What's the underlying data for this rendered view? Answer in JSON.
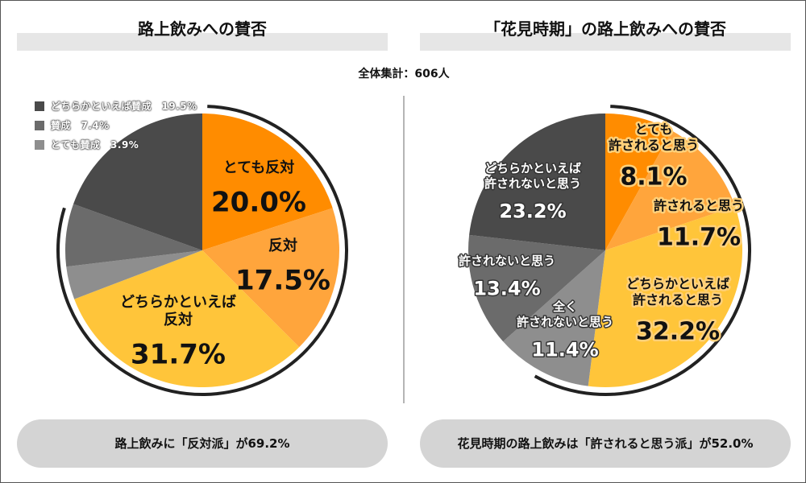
{
  "header": {
    "left_title": "路上飲みへの賛否",
    "right_title": "「花見時期」の路上飲みへの賛否",
    "total": "全体集計：606人"
  },
  "legend": [
    {
      "label": "どちらかといえば賛成　19.5%",
      "color": "#4a4a4a"
    },
    {
      "label": "賛成　7.4%",
      "color": "#6b6b6b"
    },
    {
      "label": "とても賛成　3.9%",
      "color": "#8e8e8e"
    }
  ],
  "summary": {
    "left": "路上飲みに「反対派」が69.2%",
    "right": "花見時期の路上飲みは「許されると思う派」が52.0%"
  },
  "colors": {
    "orange_dark": "#ff8c00",
    "orange": "#ffa53c",
    "yellow": "#ffc53a",
    "gray_dark": "#4a4a4a",
    "gray_mid": "#6b6b6b",
    "gray_light": "#8e8e8e",
    "label_outline": "#e07a00"
  },
  "chart_data": [
    {
      "type": "pie",
      "title": "路上飲みへの賛否",
      "start": "12 o'clock, clockwise",
      "slices": [
        {
          "name": "とても反対",
          "value": 20.0,
          "label": "20.0%",
          "color": "#ff8c00"
        },
        {
          "name": "反対",
          "value": 17.5,
          "label": "17.5%",
          "color": "#ffa53c"
        },
        {
          "name": "どちらかといえば反対",
          "value": 31.7,
          "label": "31.7%",
          "color": "#ffc53a"
        },
        {
          "name": "とても賛成",
          "value": 3.9,
          "label": "3.9%",
          "color": "#8e8e8e"
        },
        {
          "name": "賛成",
          "value": 7.4,
          "label": "7.4%",
          "color": "#6b6b6b"
        },
        {
          "name": "どちらかといえば賛成",
          "value": 19.5,
          "label": "19.5%",
          "color": "#4a4a4a"
        }
      ],
      "annotation": "路上飲みに「反対派」が69.2%"
    },
    {
      "type": "pie",
      "title": "「花見時期」の路上飲みへの賛否",
      "start": "12 o'clock, clockwise",
      "slices": [
        {
          "name": "とても許されると思う",
          "value": 8.1,
          "label": "8.1%",
          "color": "#ff8c00"
        },
        {
          "name": "許されると思う",
          "value": 11.7,
          "label": "11.7%",
          "color": "#ffa53c"
        },
        {
          "name": "どちらかといえば許されると思う",
          "value": 32.2,
          "label": "32.2%",
          "color": "#ffc53a"
        },
        {
          "name": "全く許されないと思う",
          "value": 11.4,
          "label": "11.4%",
          "color": "#8e8e8e"
        },
        {
          "name": "許されないと思う",
          "value": 13.4,
          "label": "13.4%",
          "color": "#6b6b6b"
        },
        {
          "name": "どちらかといえば許されないと思う",
          "value": 23.2,
          "label": "23.2%",
          "color": "#4a4a4a"
        }
      ],
      "annotation": "花見時期の路上飲みは「許されると思う派」が52.0%"
    }
  ],
  "pie_labels": {
    "left": [
      {
        "lines": [
          "とても反対"
        ],
        "pct": "20.0%",
        "style": "dark"
      },
      {
        "lines": [
          "反対"
        ],
        "pct": "17.5%",
        "style": "dark"
      },
      {
        "lines": [
          "どちらかといえば",
          "反対"
        ],
        "pct": "31.7%",
        "style": "dark"
      }
    ],
    "right": [
      {
        "lines": [
          "とても",
          "許されると思う"
        ],
        "pct": "8.1%",
        "style": "outlined"
      },
      {
        "lines": [
          "許されると思う"
        ],
        "pct": "11.7%",
        "style": "outlined"
      },
      {
        "lines": [
          "どちらかといえば",
          "許されると思う"
        ],
        "pct": "32.2%",
        "style": "outlined"
      },
      {
        "lines": [
          "全く",
          "許されないと思う"
        ],
        "pct": "11.4%",
        "style": "light"
      },
      {
        "lines": [
          "許されないと思う"
        ],
        "pct": "13.4%",
        "style": "light"
      },
      {
        "lines": [
          "どちらかといえば",
          "許されないと思う"
        ],
        "pct": "23.2%",
        "style": "light"
      }
    ]
  }
}
